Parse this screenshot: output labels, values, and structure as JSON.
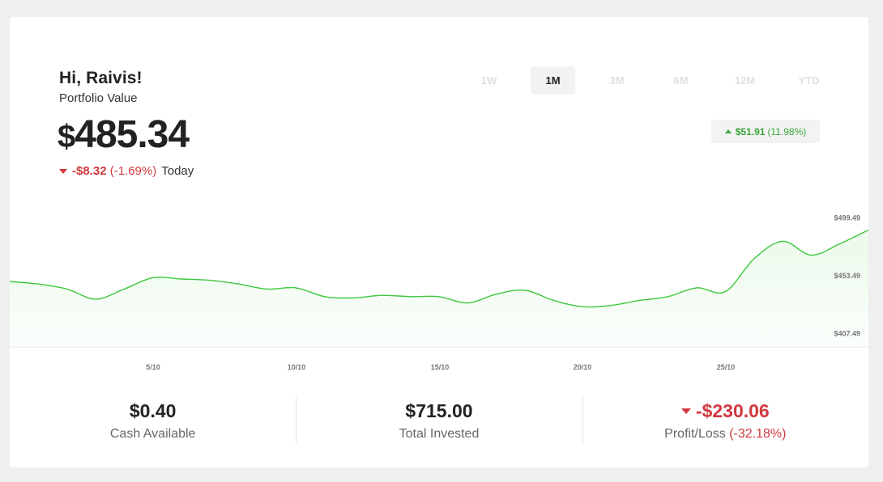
{
  "header": {
    "greeting": "Hi, Raivis!",
    "subtitle": "Portfolio Value",
    "currency_symbol": "$",
    "value": "485.34",
    "today_change": "-$8.32",
    "today_pct": "(-1.69%)",
    "today_label": "Today"
  },
  "ranges": [
    {
      "label": "1W",
      "active": false
    },
    {
      "label": "1M",
      "active": true
    },
    {
      "label": "3M",
      "active": false
    },
    {
      "label": "6M",
      "active": false
    },
    {
      "label": "12M",
      "active": false
    },
    {
      "label": "YTD",
      "active": false
    }
  ],
  "period_change": {
    "amount": "$51.91",
    "pct": "(11.98%)"
  },
  "colors": {
    "positive": "#3aa53a",
    "negative": "#d0393e",
    "line": "#3cc83c"
  },
  "chart_data": {
    "type": "area",
    "x_ticks": [
      "5/10",
      "10/10",
      "15/10",
      "20/10",
      "25/10"
    ],
    "y_ticks": [
      "$499.49",
      "$453.49",
      "$407.49"
    ],
    "y_tick_values": [
      499.49,
      453.49,
      407.49
    ],
    "ylim": [
      397,
      505
    ],
    "xlim": [
      0,
      30
    ],
    "series": [
      {
        "points": [
          [
            0,
            449
          ],
          [
            1,
            447
          ],
          [
            2,
            443
          ],
          [
            3,
            435
          ],
          [
            4,
            443
          ],
          [
            5,
            452
          ],
          [
            6,
            451
          ],
          [
            7,
            450
          ],
          [
            8,
            447
          ],
          [
            9,
            443
          ],
          [
            10,
            444
          ],
          [
            11,
            437
          ],
          [
            12,
            436
          ],
          [
            13,
            438
          ],
          [
            14,
            437
          ],
          [
            15,
            437
          ],
          [
            16,
            432
          ],
          [
            17,
            439
          ],
          [
            18,
            442
          ],
          [
            19,
            434
          ],
          [
            20,
            429
          ],
          [
            21,
            430
          ],
          [
            22,
            434
          ],
          [
            23,
            437
          ],
          [
            24,
            444
          ],
          [
            25,
            441
          ],
          [
            26,
            467
          ],
          [
            27,
            481
          ],
          [
            28,
            470
          ],
          [
            29,
            479
          ],
          [
            30,
            490
          ]
        ]
      }
    ]
  },
  "stats": [
    {
      "value": "$0.40",
      "label": "Cash Available",
      "negative": false
    },
    {
      "value": "$715.00",
      "label": "Total Invested",
      "negative": false
    },
    {
      "value": "-$230.06",
      "label_main": "Profit/Loss",
      "label_pct": "(-32.18%)",
      "negative": true
    }
  ]
}
